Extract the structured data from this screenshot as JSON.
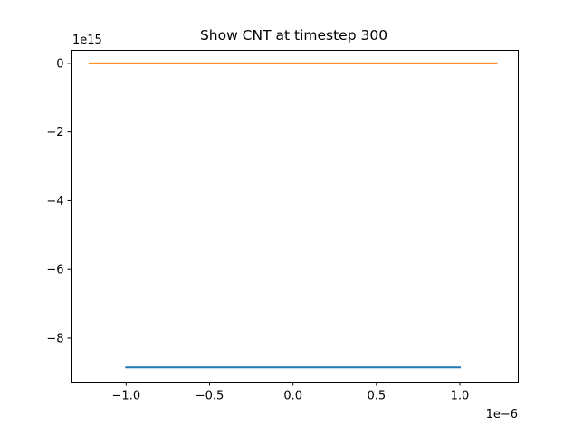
{
  "chart_data": {
    "type": "line",
    "title": "Show CNT at timestep 300",
    "xlabel": "",
    "ylabel": "",
    "x_offset_label": "1e−6",
    "y_offset_label": "1e15",
    "x_scale": 1e-06,
    "y_scale": 1000000000000000.0,
    "xlim": [
      -1.33,
      1.35
    ],
    "ylim": [
      -9.28,
      0.38
    ],
    "x_ticks": [
      -1.0,
      -0.5,
      0.0,
      0.5,
      1.0
    ],
    "x_tick_labels": [
      "−1.0",
      "−0.5",
      "0.0",
      "0.5",
      "1.0"
    ],
    "y_ticks": [
      0,
      -2,
      -4,
      -6,
      -8
    ],
    "y_tick_labels": [
      "0",
      "−2",
      "−4",
      "−6",
      "−8"
    ],
    "grid": false,
    "series": [
      {
        "color": "#1f77b4",
        "x": [
          -1.0,
          1.0
        ],
        "y": [
          -8.85,
          -8.85
        ]
      },
      {
        "color": "#ff7f0e",
        "x": [
          -1.22,
          1.22
        ],
        "y": [
          0.0,
          0.0
        ]
      }
    ]
  }
}
